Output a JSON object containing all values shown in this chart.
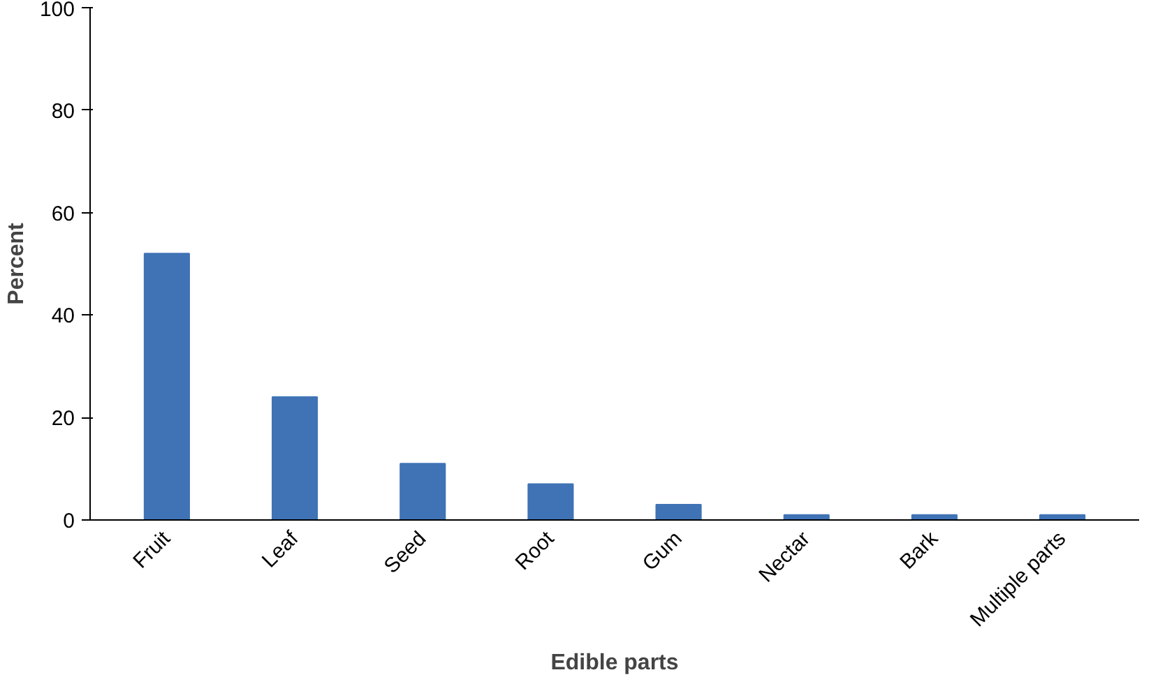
{
  "chart_data": {
    "type": "bar",
    "xlabel": "Edible parts",
    "ylabel": "Percent",
    "categories": [
      "Fruit",
      "Leaf",
      "Seed",
      "Root",
      "Gum",
      "Nectar",
      "Bark",
      "Multiple parts"
    ],
    "values": [
      52,
      24,
      11,
      7,
      3,
      1,
      1,
      1
    ],
    "color": "#3f73b5",
    "ylim": [
      0,
      100
    ],
    "yticks": [
      0,
      20,
      40,
      60,
      80,
      100
    ],
    "grid": false
  }
}
